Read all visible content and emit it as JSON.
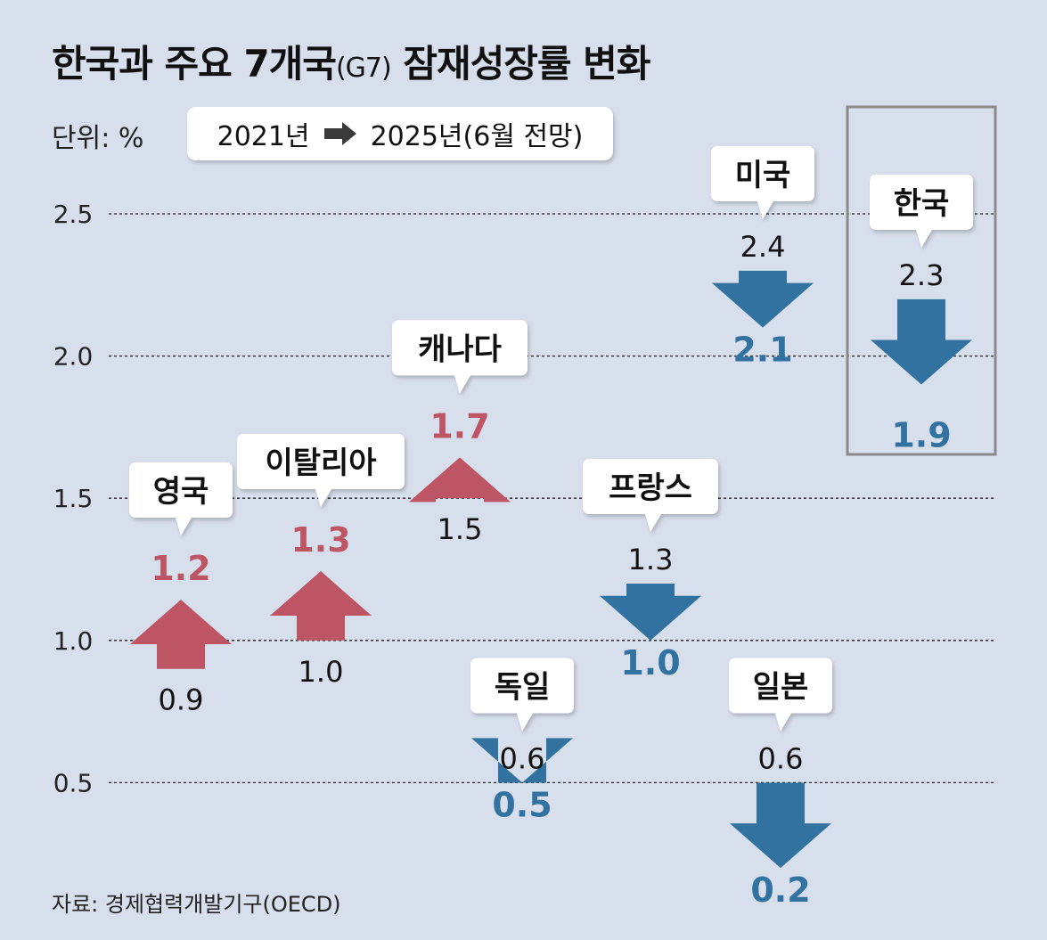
{
  "title": {
    "main": "한국과 주요 7개국",
    "sub": "(G7)",
    "tail": " 잠재성장률 변화"
  },
  "unit_label": "단위: %",
  "legend": {
    "from": "2021년",
    "to": "2025년(6월 전망)"
  },
  "source": "자료: 경제협력개발기구(OECD)",
  "colors": {
    "up": "#bd5565",
    "down": "#3272a0",
    "background": "#d8dfec",
    "text": "#111111"
  },
  "chart_data": {
    "type": "arrow",
    "y_ticks": [
      "0.5",
      "1.0",
      "1.5",
      "2.0",
      "2.5"
    ],
    "ylim": [
      0,
      2.75
    ],
    "grid": "dotted horizontal",
    "series": [
      {
        "name": "영국",
        "from": 0.9,
        "to": 1.2,
        "from_label": "0.9",
        "to_label": "1.2"
      },
      {
        "name": "이탈리아",
        "from": 1.0,
        "to": 1.3,
        "from_label": "1.0",
        "to_label": "1.3"
      },
      {
        "name": "캐나다",
        "from": 1.5,
        "to": 1.7,
        "from_label": "1.5",
        "to_label": "1.7"
      },
      {
        "name": "독일",
        "from": 0.6,
        "to": 0.5,
        "from_label": "0.6",
        "to_label": "0.5"
      },
      {
        "name": "프랑스",
        "from": 1.3,
        "to": 1.0,
        "from_label": "1.3",
        "to_label": "1.0"
      },
      {
        "name": "일본",
        "from": 0.6,
        "to": 0.2,
        "from_label": "0.6",
        "to_label": "0.2"
      },
      {
        "name": "미국",
        "from": 2.4,
        "to": 2.1,
        "from_label": "2.4",
        "to_label": "2.1"
      },
      {
        "name": "한국",
        "from": 2.3,
        "to": 1.9,
        "from_label": "2.3",
        "to_label": "1.9",
        "highlighted": true
      }
    ]
  }
}
